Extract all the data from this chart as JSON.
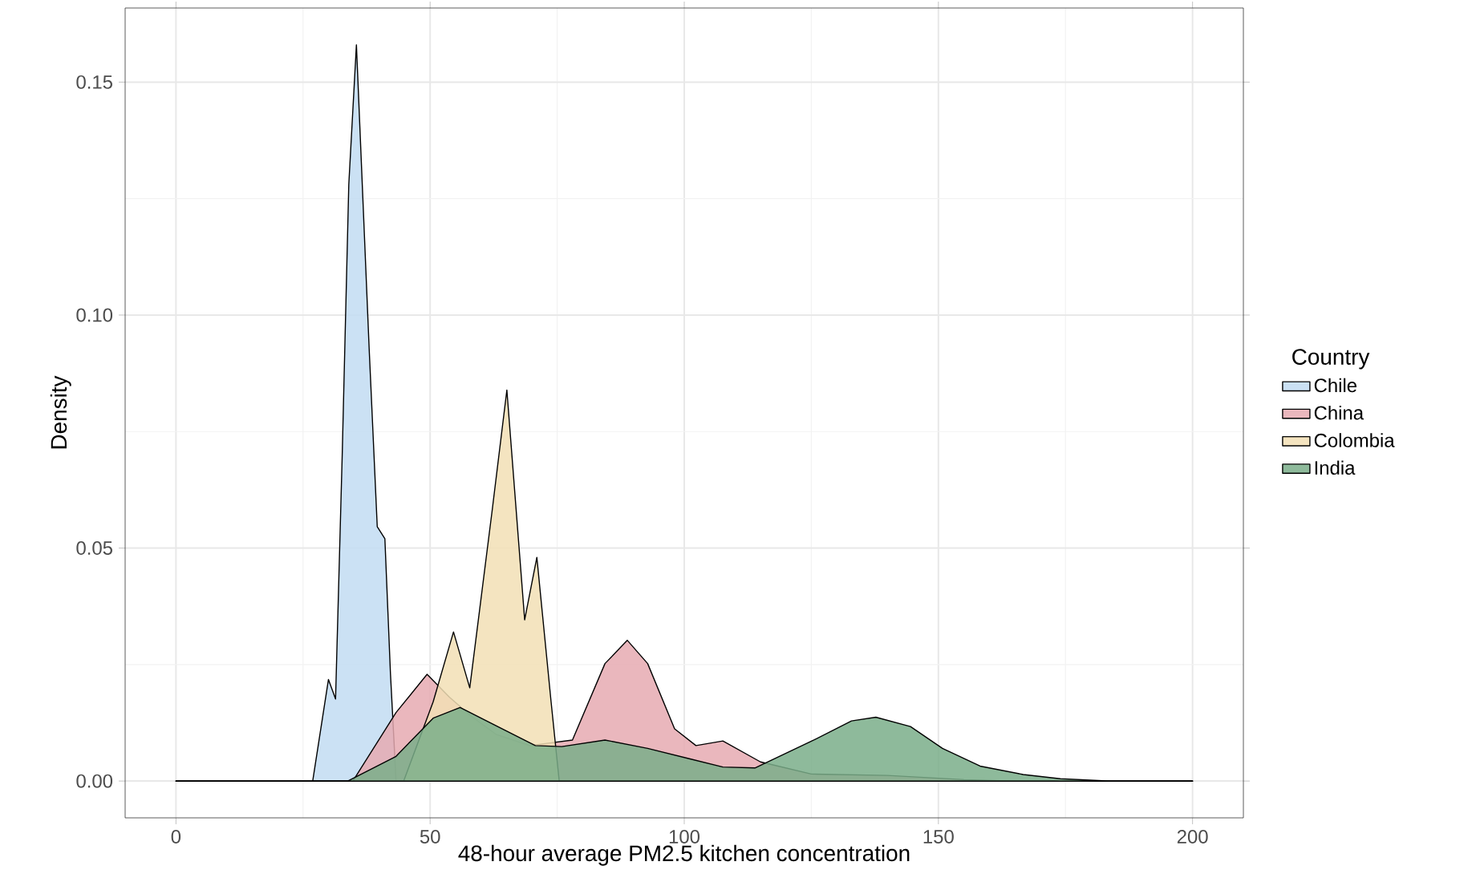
{
  "chart_data": {
    "type": "area",
    "xlabel": "48-hour average PM2.5 kitchen concentration",
    "ylabel": "Density",
    "legend_title": "Country",
    "legend": "right",
    "grid": true,
    "xlim": [
      -10,
      210
    ],
    "ylim": [
      -0.0079,
      0.1659
    ],
    "xticks": [
      0,
      50,
      100,
      150,
      200
    ],
    "yticks": [
      {
        "value": 0,
        "label": "0.00"
      },
      {
        "value": 0.05,
        "label": "0.05"
      },
      {
        "value": 0.1,
        "label": "0.10"
      },
      {
        "value": 0.15,
        "label": "0.15"
      }
    ],
    "series": [
      {
        "name": "Chile",
        "color": "#c2dcf2",
        "x": [
          0,
          26.9,
          30,
          31.4,
          32.7,
          34,
          35.5,
          38,
          39.6,
          41.1,
          42.2,
          43.3,
          200
        ],
        "values": [
          0,
          0,
          0.0218,
          0.0176,
          0.0697,
          0.128,
          0.158,
          0.093,
          0.0546,
          0.052,
          0.023,
          0,
          0
        ]
      },
      {
        "name": "China",
        "color": "#e6aab2",
        "x": [
          0,
          34.8,
          43.3,
          49.4,
          53.8,
          58,
          63,
          69.6,
          78,
          84.4,
          88.8,
          92.8,
          98.1,
          102.3,
          107.6,
          115,
          125,
          140,
          155,
          165,
          200
        ],
        "values": [
          0,
          0,
          0.0147,
          0.0229,
          0.018,
          0.014,
          0.01,
          0.0076,
          0.0088,
          0.0252,
          0.0302,
          0.0252,
          0.0112,
          0.0076,
          0.0086,
          0.0041,
          0.0015,
          0.0012,
          0.0003,
          0,
          0
        ]
      },
      {
        "name": "Colombia",
        "color": "#f2dfb5",
        "x": [
          0,
          44.8,
          50.6,
          54.6,
          57.8,
          62.2,
          65.1,
          68.6,
          71,
          73.8,
          75.4,
          200
        ],
        "values": [
          0,
          0,
          0.017,
          0.032,
          0.02,
          0.058,
          0.0839,
          0.0346,
          0.048,
          0.017,
          0,
          0
        ]
      },
      {
        "name": "India",
        "color": "#7aae8a",
        "x": [
          0,
          33.8,
          43.3,
          50.6,
          55.9,
          62.2,
          70.7,
          75.9,
          84.4,
          92.8,
          101.3,
          107.6,
          113.9,
          125.5,
          132.9,
          137.7,
          144.5,
          150.8,
          158.2,
          166.7,
          174,
          184,
          200
        ],
        "values": [
          0,
          0,
          0.0053,
          0.0135,
          0.0158,
          0.0123,
          0.0076,
          0.0074,
          0.0088,
          0.007,
          0.0047,
          0.003,
          0.0028,
          0.0088,
          0.0129,
          0.0137,
          0.0117,
          0.007,
          0.0032,
          0.0014,
          0.0005,
          0,
          0
        ]
      }
    ]
  }
}
